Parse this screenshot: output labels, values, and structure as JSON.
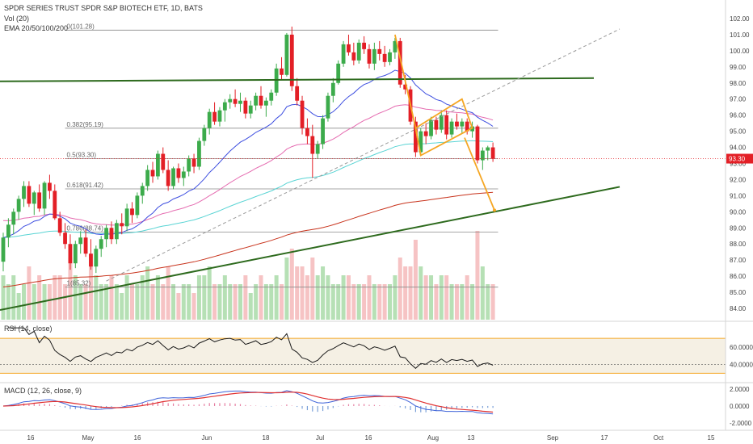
{
  "header": {
    "title": "SPDR SERIES TRUST SPDR S&P BIOTECH ETF, 1D, BATS",
    "vol_label": "Vol (20)",
    "ema_label": "EMA 20/50/100/200"
  },
  "price_axis": {
    "ticks": [
      "102.00",
      "101.00",
      "100.00",
      "99.00",
      "98.00",
      "97.00",
      "96.00",
      "95.00",
      "94.00",
      "93.00",
      "92.00",
      "91.00",
      "90.00",
      "89.00",
      "88.00",
      "87.00",
      "86.00",
      "85.00",
      "84.00"
    ],
    "last_price": "93.30"
  },
  "fib_labels": [
    "0(101.28)",
    "0.382(95.19)",
    "0.5(93.30)",
    "0.618(91.42)",
    "0.786(88.74)",
    "1(85.32)"
  ],
  "rsi": {
    "label": "RSI (14, close)",
    "ticks": [
      "60.0000",
      "40.0000"
    ]
  },
  "macd": {
    "label": "MACD (12, 26, close, 9)",
    "ticks": [
      "2.0000",
      "0.0000",
      "-2.0000"
    ]
  },
  "time_axis": [
    "16",
    "May",
    "16",
    "Jun",
    "18",
    "Jul",
    "16",
    "Aug",
    "13",
    "Sep",
    "17",
    "Oct",
    "15"
  ],
  "colors": {
    "up": "#3cab4b",
    "down": "#e31f26",
    "ema20": "#3d4ee0",
    "ema50": "#e56bb0",
    "ema100": "#59d4d4",
    "ema200": "#c8331c",
    "trend": "#2d6a1d",
    "pattern": "#f5a623",
    "rsi_band": "#f5f0e4",
    "rsi_limit": "#f5a623",
    "macd_line": "#3d62d8",
    "signal_line": "#e03030",
    "price_tag": "#e31f26"
  },
  "chart_data": {
    "type": "candlestick",
    "ylim": [
      83.3,
      102.6
    ],
    "x_range": [
      0,
      151
    ],
    "candles": [
      [
        86.9,
        88.7,
        86.3,
        88.4
      ],
      [
        88.4,
        89.6,
        87.8,
        89.2
      ],
      [
        89.2,
        90.2,
        88.6,
        90.0
      ],
      [
        90.0,
        91.0,
        89.5,
        90.8
      ],
      [
        90.8,
        91.9,
        90.3,
        91.6
      ],
      [
        91.6,
        91.9,
        90.3,
        90.5
      ],
      [
        90.5,
        91.3,
        89.8,
        91.2
      ],
      [
        91.2,
        91.7,
        90.0,
        90.2
      ],
      [
        90.2,
        91.9,
        89.8,
        91.8
      ],
      [
        91.8,
        92.3,
        90.8,
        91.3
      ],
      [
        91.3,
        91.7,
        89.5,
        89.6
      ],
      [
        89.6,
        90.0,
        88.5,
        88.7
      ],
      [
        88.7,
        89.3,
        87.7,
        88.0
      ],
      [
        88.0,
        88.6,
        86.4,
        86.8
      ],
      [
        86.8,
        88.2,
        86.5,
        88.0
      ],
      [
        88.0,
        88.8,
        87.4,
        88.4
      ],
      [
        88.4,
        88.9,
        87.2,
        87.4
      ],
      [
        87.4,
        88.3,
        86.4,
        86.6
      ],
      [
        86.6,
        87.9,
        86.2,
        87.7
      ],
      [
        87.7,
        88.5,
        87.2,
        88.3
      ],
      [
        88.3,
        89.2,
        87.8,
        89.0
      ],
      [
        89.0,
        89.4,
        88.0,
        88.3
      ],
      [
        88.3,
        89.5,
        88.0,
        89.3
      ],
      [
        89.3,
        89.9,
        88.6,
        89.1
      ],
      [
        89.1,
        90.5,
        88.8,
        90.2
      ],
      [
        90.2,
        90.6,
        89.3,
        89.8
      ],
      [
        89.8,
        91.2,
        89.6,
        91.0
      ],
      [
        91.0,
        91.8,
        90.5,
        91.6
      ],
      [
        91.6,
        92.9,
        91.3,
        92.6
      ],
      [
        92.6,
        93.1,
        91.8,
        92.2
      ],
      [
        92.2,
        93.8,
        92.0,
        93.6
      ],
      [
        93.6,
        94.0,
        92.4,
        92.6
      ],
      [
        92.6,
        93.2,
        91.3,
        91.6
      ],
      [
        91.6,
        92.8,
        91.4,
        92.7
      ],
      [
        92.7,
        93.0,
        91.8,
        92.1
      ],
      [
        92.1,
        92.8,
        91.6,
        92.5
      ],
      [
        92.5,
        93.5,
        92.2,
        93.3
      ],
      [
        93.3,
        93.6,
        92.4,
        92.8
      ],
      [
        92.8,
        94.6,
        92.6,
        94.4
      ],
      [
        94.4,
        95.4,
        94.1,
        95.2
      ],
      [
        95.2,
        96.4,
        94.8,
        96.2
      ],
      [
        96.2,
        96.8,
        95.4,
        95.6
      ],
      [
        95.6,
        96.5,
        95.3,
        96.3
      ],
      [
        96.3,
        97.0,
        95.6,
        96.8
      ],
      [
        96.8,
        97.3,
        96.4,
        97.0
      ],
      [
        97.0,
        97.6,
        96.5,
        96.7
      ],
      [
        96.7,
        97.4,
        96.2,
        96.9
      ],
      [
        96.9,
        97.1,
        95.8,
        96.1
      ],
      [
        96.1,
        96.9,
        95.8,
        96.6
      ],
      [
        96.6,
        97.4,
        96.3,
        97.2
      ],
      [
        97.2,
        97.8,
        96.4,
        96.6
      ],
      [
        96.6,
        97.1,
        95.9,
        96.9
      ],
      [
        96.9,
        97.6,
        96.6,
        97.4
      ],
      [
        97.4,
        99.2,
        97.2,
        98.9
      ],
      [
        98.9,
        99.6,
        98.2,
        98.5
      ],
      [
        98.5,
        101.1,
        98.4,
        101.0
      ],
      [
        101.0,
        101.5,
        97.5,
        97.8
      ],
      [
        97.8,
        98.3,
        96.6,
        96.9
      ],
      [
        96.9,
        97.2,
        94.8,
        95.2
      ],
      [
        95.2,
        95.8,
        94.2,
        94.7
      ],
      [
        94.7,
        95.4,
        92.1,
        93.6
      ],
      [
        93.6,
        94.4,
        93.3,
        94.2
      ],
      [
        94.2,
        96.0,
        93.9,
        95.8
      ],
      [
        95.8,
        97.4,
        95.6,
        97.2
      ],
      [
        97.2,
        98.3,
        96.8,
        98.0
      ],
      [
        98.0,
        99.4,
        97.9,
        99.2
      ],
      [
        99.2,
        100.6,
        99.0,
        100.4
      ],
      [
        100.4,
        101.0,
        99.7,
        99.9
      ],
      [
        99.9,
        100.5,
        99.1,
        99.4
      ],
      [
        99.4,
        100.7,
        99.2,
        100.5
      ],
      [
        100.5,
        100.9,
        99.8,
        100.1
      ],
      [
        100.1,
        100.4,
        98.9,
        99.2
      ],
      [
        99.2,
        100.5,
        98.8,
        100.1
      ],
      [
        100.1,
        100.6,
        99.4,
        99.8
      ],
      [
        99.8,
        100.3,
        99.0,
        99.3
      ],
      [
        99.3,
        100.1,
        99.1,
        99.9
      ],
      [
        99.9,
        100.8,
        99.5,
        100.6
      ],
      [
        100.6,
        100.8,
        97.7,
        97.9
      ],
      [
        97.9,
        98.5,
        97.3,
        97.6
      ],
      [
        97.6,
        97.8,
        95.4,
        95.6
      ],
      [
        95.6,
        95.9,
        93.4,
        93.7
      ],
      [
        93.7,
        95.2,
        93.5,
        95.0
      ],
      [
        95.0,
        95.5,
        94.2,
        94.7
      ],
      [
        94.7,
        95.9,
        94.5,
        95.7
      ],
      [
        95.7,
        95.9,
        94.8,
        95.1
      ],
      [
        95.1,
        96.3,
        94.9,
        96.0
      ],
      [
        96.0,
        96.3,
        94.5,
        94.8
      ],
      [
        94.8,
        95.8,
        94.6,
        95.6
      ],
      [
        95.6,
        96.1,
        95.1,
        95.3
      ],
      [
        95.3,
        95.8,
        94.9,
        95.6
      ],
      [
        95.6,
        95.8,
        94.8,
        95.0
      ],
      [
        95.0,
        95.6,
        94.6,
        95.3
      ],
      [
        95.3,
        95.4,
        93.0,
        93.2
      ],
      [
        93.2,
        94.0,
        92.6,
        93.8
      ],
      [
        93.8,
        94.1,
        93.2,
        94.0
      ],
      [
        94.0,
        94.3,
        93.1,
        93.3
      ]
    ],
    "volume": [
      [
        5,
        1
      ],
      [
        4,
        1
      ],
      [
        5,
        1
      ],
      [
        3,
        1
      ],
      [
        4,
        1
      ],
      [
        6,
        0
      ],
      [
        4,
        1
      ],
      [
        5,
        0
      ],
      [
        4,
        1
      ],
      [
        4,
        0
      ],
      [
        5,
        0
      ],
      [
        5,
        0
      ],
      [
        4,
        0
      ],
      [
        7,
        0
      ],
      [
        5,
        1
      ],
      [
        4,
        1
      ],
      [
        4,
        0
      ],
      [
        6,
        0
      ],
      [
        5,
        1
      ],
      [
        4,
        1
      ],
      [
        4,
        1
      ],
      [
        5,
        0
      ],
      [
        4,
        1
      ],
      [
        3,
        1
      ],
      [
        5,
        1
      ],
      [
        4,
        0
      ],
      [
        4,
        1
      ],
      [
        5,
        1
      ],
      [
        6,
        1
      ],
      [
        4,
        0
      ],
      [
        5,
        1
      ],
      [
        4,
        0
      ],
      [
        6,
        0
      ],
      [
        4,
        1
      ],
      [
        3,
        0
      ],
      [
        4,
        1
      ],
      [
        4,
        1
      ],
      [
        3,
        0
      ],
      [
        5,
        1
      ],
      [
        5,
        1
      ],
      [
        6,
        1
      ],
      [
        4,
        0
      ],
      [
        4,
        1
      ],
      [
        5,
        1
      ],
      [
        4,
        1
      ],
      [
        4,
        0
      ],
      [
        4,
        1
      ],
      [
        5,
        0
      ],
      [
        3,
        1
      ],
      [
        4,
        1
      ],
      [
        5,
        0
      ],
      [
        4,
        1
      ],
      [
        4,
        1
      ],
      [
        5,
        1
      ],
      [
        4,
        0
      ],
      [
        7,
        1
      ],
      [
        8,
        0
      ],
      [
        6,
        0
      ],
      [
        6,
        0
      ],
      [
        5,
        0
      ],
      [
        7,
        0
      ],
      [
        5,
        1
      ],
      [
        6,
        1
      ],
      [
        5,
        1
      ],
      [
        4,
        1
      ],
      [
        4,
        1
      ],
      [
        5,
        1
      ],
      [
        5,
        0
      ],
      [
        4,
        0
      ],
      [
        4,
        1
      ],
      [
        4,
        0
      ],
      [
        5,
        0
      ],
      [
        4,
        1
      ],
      [
        4,
        0
      ],
      [
        4,
        0
      ],
      [
        4,
        1
      ],
      [
        5,
        1
      ],
      [
        7,
        0
      ],
      [
        6,
        0
      ],
      [
        6,
        0
      ],
      [
        9,
        0
      ],
      [
        6,
        1
      ],
      [
        5,
        0
      ],
      [
        5,
        1
      ],
      [
        4,
        0
      ],
      [
        5,
        1
      ],
      [
        5,
        0
      ],
      [
        4,
        1
      ],
      [
        4,
        0
      ],
      [
        4,
        1
      ],
      [
        5,
        0
      ],
      [
        4,
        1
      ],
      [
        10,
        0
      ],
      [
        6,
        1
      ],
      [
        4,
        1
      ],
      [
        4,
        0
      ]
    ],
    "fib_levels": [
      101.28,
      95.19,
      93.3,
      91.42,
      88.74,
      85.32
    ]
  }
}
